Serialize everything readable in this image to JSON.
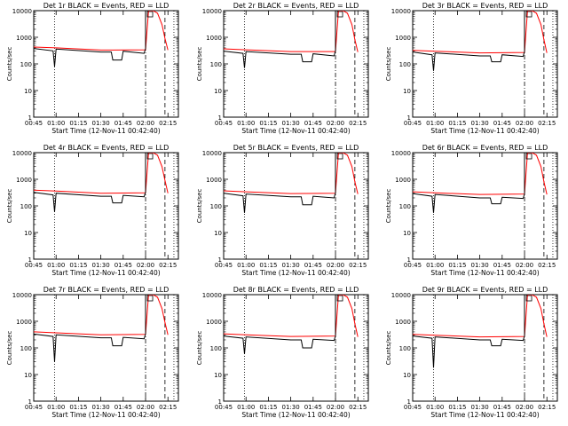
{
  "figure": {
    "ylabel": "Counts/sec",
    "xlabel": "Start Time (12-Nov-11 00:42:40)"
  },
  "chart_data": [
    {
      "type": "line",
      "title": "Det 1r BLACK = Events, RED = LLD",
      "xlabel": "Start Time (12-Nov-11 00:42:40)",
      "ylabel": "Counts/sec",
      "y_scale": "log",
      "ylim": [
        1,
        10000
      ],
      "xlim": [
        "00:45",
        "02:22"
      ],
      "x_ticks": [
        "00:45",
        "01:00",
        "01:15",
        "01:30",
        "01:45",
        "02:00",
        "02:15"
      ],
      "y_ticks": [
        "1",
        "10",
        "100",
        "1000",
        "10000"
      ],
      "series": [
        {
          "color": "#000000",
          "x": [
            "00:45",
            "00:58",
            "00:59",
            "01:00",
            "01:30",
            "01:37",
            "01:38",
            "01:44",
            "01:45",
            "01:59",
            "02:00",
            "02:00"
          ],
          "y": [
            380,
            310,
            80,
            360,
            280,
            280,
            140,
            140,
            300,
            250,
            380,
            10000
          ]
        },
        {
          "color": "#ff0000",
          "x": [
            "00:45",
            "01:00",
            "01:30",
            "02:00",
            "02:02",
            "02:05",
            "02:08",
            "02:11",
            "02:13",
            "02:15"
          ],
          "y": [
            430,
            400,
            330,
            340,
            10000,
            10000,
            8000,
            3000,
            900,
            330
          ]
        }
      ],
      "dotted_x": [
        "00:59",
        "02:19"
      ],
      "dashdot_x": [
        "02:00"
      ],
      "dashed_x": [
        "02:13"
      ]
    },
    {
      "type": "line",
      "title": "Det 2r BLACK = Events, RED = LLD",
      "xlabel": "Start Time (12-Nov-11 00:42:40)",
      "ylabel": "Counts/sec",
      "y_scale": "log",
      "ylim": [
        1,
        10000
      ],
      "xlim": [
        "00:45",
        "02:22"
      ],
      "x_ticks": [
        "00:45",
        "01:00",
        "01:15",
        "01:30",
        "01:45",
        "02:00",
        "02:15"
      ],
      "y_ticks": [
        "1",
        "10",
        "100",
        "1000",
        "10000"
      ],
      "series": [
        {
          "color": "#000000",
          "x": [
            "00:45",
            "00:58",
            "00:59",
            "01:00",
            "01:30",
            "01:37",
            "01:38",
            "01:44",
            "01:45",
            "01:59",
            "02:00",
            "02:00"
          ],
          "y": [
            300,
            250,
            70,
            290,
            230,
            230,
            120,
            120,
            240,
            200,
            310,
            10000
          ]
        },
        {
          "color": "#ff0000",
          "x": [
            "00:45",
            "01:00",
            "01:30",
            "02:00",
            "02:02",
            "02:05",
            "02:08",
            "02:11",
            "02:13",
            "02:15"
          ],
          "y": [
            370,
            340,
            290,
            290,
            10000,
            10000,
            8000,
            3000,
            800,
            280
          ]
        }
      ],
      "dotted_x": [
        "00:59",
        "02:19"
      ],
      "dashdot_x": [
        "02:00"
      ],
      "dashed_x": [
        "02:13"
      ]
    },
    {
      "type": "line",
      "title": "Det 3r BLACK = Events, RED = LLD",
      "xlabel": "Start Time (12-Nov-11 00:42:40)",
      "ylabel": "Counts/sec",
      "y_scale": "log",
      "ylim": [
        1,
        10000
      ],
      "xlim": [
        "00:45",
        "02:22"
      ],
      "x_ticks": [
        "00:45",
        "01:00",
        "01:15",
        "01:30",
        "01:45",
        "02:00",
        "02:15"
      ],
      "y_ticks": [
        "1",
        "10",
        "100",
        "1000",
        "10000"
      ],
      "series": [
        {
          "color": "#000000",
          "x": [
            "00:45",
            "00:58",
            "00:59",
            "01:00",
            "01:30",
            "01:37",
            "01:38",
            "01:44",
            "01:45",
            "01:59",
            "02:00",
            "02:00"
          ],
          "y": [
            280,
            220,
            55,
            260,
            200,
            200,
            120,
            120,
            220,
            190,
            290,
            10000
          ]
        },
        {
          "color": "#ff0000",
          "x": [
            "00:45",
            "01:00",
            "01:30",
            "02:00",
            "02:02",
            "02:05",
            "02:08",
            "02:11",
            "02:13",
            "02:15"
          ],
          "y": [
            320,
            300,
            260,
            270,
            10000,
            10000,
            8000,
            3000,
            800,
            260
          ]
        }
      ],
      "dotted_x": [
        "00:59",
        "02:19"
      ],
      "dashdot_x": [
        "02:00"
      ],
      "dashed_x": [
        "02:13"
      ]
    },
    {
      "type": "line",
      "title": "Det 4r BLACK = Events, RED = LLD",
      "xlabel": "Start Time (12-Nov-11 00:42:40)",
      "ylabel": "Counts/sec",
      "y_scale": "log",
      "ylim": [
        1,
        10000
      ],
      "xlim": [
        "00:45",
        "02:22"
      ],
      "x_ticks": [
        "00:45",
        "01:00",
        "01:15",
        "01:30",
        "01:45",
        "02:00",
        "02:15"
      ],
      "y_ticks": [
        "1",
        "10",
        "100",
        "1000",
        "10000"
      ],
      "series": [
        {
          "color": "#000000",
          "x": [
            "00:45",
            "00:58",
            "00:59",
            "01:00",
            "01:30",
            "01:37",
            "01:38",
            "01:44",
            "01:45",
            "01:59",
            "02:00",
            "02:00"
          ],
          "y": [
            320,
            260,
            60,
            300,
            230,
            230,
            130,
            130,
            250,
            220,
            330,
            10000
          ]
        },
        {
          "color": "#ff0000",
          "x": [
            "00:45",
            "01:00",
            "01:30",
            "02:00",
            "02:02",
            "02:05",
            "02:08",
            "02:11",
            "02:13",
            "02:15"
          ],
          "y": [
            390,
            360,
            300,
            310,
            10000,
            10000,
            8000,
            3000,
            900,
            300
          ]
        }
      ],
      "dotted_x": [
        "00:59",
        "02:19"
      ],
      "dashdot_x": [
        "02:00"
      ],
      "dashed_x": [
        "02:13"
      ]
    },
    {
      "type": "line",
      "title": "Det 5r BLACK = Events, RED = LLD",
      "xlabel": "Start Time (12-Nov-11 00:42:40)",
      "ylabel": "Counts/sec",
      "y_scale": "log",
      "ylim": [
        1,
        10000
      ],
      "xlim": [
        "00:45",
        "02:22"
      ],
      "x_ticks": [
        "00:45",
        "01:00",
        "01:15",
        "01:30",
        "01:45",
        "02:00",
        "02:15"
      ],
      "y_ticks": [
        "1",
        "10",
        "100",
        "1000",
        "10000"
      ],
      "series": [
        {
          "color": "#000000",
          "x": [
            "00:45",
            "00:58",
            "00:59",
            "01:00",
            "01:30",
            "01:37",
            "01:38",
            "01:44",
            "01:45",
            "01:59",
            "02:00",
            "02:00"
          ],
          "y": [
            300,
            240,
            55,
            280,
            220,
            220,
            110,
            110,
            230,
            200,
            310,
            10000
          ]
        },
        {
          "color": "#ff0000",
          "x": [
            "00:45",
            "01:00",
            "01:30",
            "02:00",
            "02:02",
            "02:05",
            "02:08",
            "02:11",
            "02:13",
            "02:15"
          ],
          "y": [
            370,
            340,
            290,
            300,
            10000,
            10000,
            8000,
            3000,
            800,
            280
          ]
        }
      ],
      "dotted_x": [
        "00:59",
        "02:19"
      ],
      "dashdot_x": [
        "02:00"
      ],
      "dashed_x": [
        "02:13"
      ]
    },
    {
      "type": "line",
      "title": "Det 6r BLACK = Events, RED = LLD",
      "xlabel": "Start Time (12-Nov-11 00:42:40)",
      "ylabel": "Counts/sec",
      "y_scale": "log",
      "ylim": [
        1,
        10000
      ],
      "xlim": [
        "00:45",
        "02:22"
      ],
      "x_ticks": [
        "00:45",
        "01:00",
        "01:15",
        "01:30",
        "01:45",
        "02:00",
        "02:15"
      ],
      "y_ticks": [
        "1",
        "10",
        "100",
        "1000",
        "10000"
      ],
      "series": [
        {
          "color": "#000000",
          "x": [
            "00:45",
            "00:58",
            "00:59",
            "01:00",
            "01:30",
            "01:37",
            "01:38",
            "01:44",
            "01:45",
            "01:59",
            "02:00",
            "02:00"
          ],
          "y": [
            290,
            230,
            55,
            270,
            200,
            200,
            120,
            120,
            210,
            190,
            280,
            10000
          ]
        },
        {
          "color": "#ff0000",
          "x": [
            "00:45",
            "01:00",
            "01:30",
            "02:00",
            "02:02",
            "02:05",
            "02:08",
            "02:11",
            "02:13",
            "02:15"
          ],
          "y": [
            340,
            310,
            270,
            280,
            10000,
            10000,
            8000,
            3000,
            800,
            270
          ]
        }
      ],
      "dotted_x": [
        "00:59",
        "02:19"
      ],
      "dashdot_x": [
        "02:00"
      ],
      "dashed_x": [
        "02:13"
      ]
    },
    {
      "type": "line",
      "title": "Det 7r BLACK = Events, RED = LLD",
      "xlabel": "Start Time (12-Nov-11 00:42:40)",
      "ylabel": "Counts/sec",
      "y_scale": "log",
      "ylim": [
        1,
        10000
      ],
      "xlim": [
        "00:45",
        "02:22"
      ],
      "x_ticks": [
        "00:45",
        "01:00",
        "01:15",
        "01:30",
        "01:45",
        "02:00",
        "02:15"
      ],
      "y_ticks": [
        "1",
        "10",
        "100",
        "1000",
        "10000"
      ],
      "series": [
        {
          "color": "#000000",
          "x": [
            "00:45",
            "00:58",
            "00:59",
            "01:00",
            "01:30",
            "01:37",
            "01:38",
            "01:44",
            "01:45",
            "01:59",
            "02:00",
            "02:00"
          ],
          "y": [
            330,
            270,
            30,
            310,
            240,
            240,
            120,
            120,
            250,
            220,
            340,
            10000
          ]
        },
        {
          "color": "#ff0000",
          "x": [
            "00:45",
            "01:00",
            "01:30",
            "02:00",
            "02:02",
            "02:05",
            "02:08",
            "02:11",
            "02:13",
            "02:15"
          ],
          "y": [
            400,
            370,
            310,
            320,
            10000,
            10000,
            8000,
            3000,
            900,
            310
          ]
        }
      ],
      "dotted_x": [
        "00:59",
        "02:19"
      ],
      "dashdot_x": [
        "02:00"
      ],
      "dashed_x": [
        "02:13"
      ]
    },
    {
      "type": "line",
      "title": "Det 8r BLACK = Events, RED = LLD",
      "xlabel": "Start Time (12-Nov-11 00:42:40)",
      "ylabel": "Counts/sec",
      "y_scale": "log",
      "ylim": [
        1,
        10000
      ],
      "xlim": [
        "00:45",
        "02:22"
      ],
      "x_ticks": [
        "00:45",
        "01:00",
        "01:15",
        "01:30",
        "01:45",
        "02:00",
        "02:15"
      ],
      "y_ticks": [
        "1",
        "10",
        "100",
        "1000",
        "10000"
      ],
      "series": [
        {
          "color": "#000000",
          "x": [
            "00:45",
            "00:58",
            "00:59",
            "01:00",
            "01:30",
            "01:37",
            "01:38",
            "01:44",
            "01:45",
            "01:59",
            "02:00",
            "02:00"
          ],
          "y": [
            280,
            230,
            60,
            260,
            200,
            200,
            100,
            100,
            210,
            190,
            280,
            10000
          ]
        },
        {
          "color": "#ff0000",
          "x": [
            "00:45",
            "01:00",
            "01:30",
            "02:00",
            "02:02",
            "02:05",
            "02:08",
            "02:11",
            "02:13",
            "02:15"
          ],
          "y": [
            340,
            310,
            270,
            280,
            10000,
            10000,
            8000,
            3000,
            800,
            260
          ]
        }
      ],
      "dotted_x": [
        "00:59",
        "02:19"
      ],
      "dashdot_x": [
        "02:00"
      ],
      "dashed_x": [
        "02:13"
      ]
    },
    {
      "type": "line",
      "title": "Det 9r BLACK = Events, RED = LLD",
      "xlabel": "Start Time (12-Nov-11 00:42:40)",
      "ylabel": "Counts/sec",
      "y_scale": "log",
      "ylim": [
        1,
        10000
      ],
      "xlim": [
        "00:45",
        "02:22"
      ],
      "x_ticks": [
        "00:45",
        "01:00",
        "01:15",
        "01:30",
        "01:45",
        "02:00",
        "02:15"
      ],
      "y_ticks": [
        "1",
        "10",
        "100",
        "1000",
        "10000"
      ],
      "series": [
        {
          "color": "#000000",
          "x": [
            "00:45",
            "00:58",
            "00:59",
            "01:00",
            "01:30",
            "01:37",
            "01:38",
            "01:44",
            "01:45",
            "01:59",
            "02:00",
            "02:00"
          ],
          "y": [
            280,
            230,
            18,
            260,
            200,
            200,
            120,
            120,
            210,
            190,
            280,
            10000
          ]
        },
        {
          "color": "#ff0000",
          "x": [
            "00:45",
            "01:00",
            "01:30",
            "02:00",
            "02:02",
            "02:05",
            "02:08",
            "02:11",
            "02:13",
            "02:15"
          ],
          "y": [
            320,
            300,
            260,
            270,
            10000,
            10000,
            8000,
            3000,
            800,
            260
          ]
        }
      ],
      "dotted_x": [
        "00:59",
        "02:19"
      ],
      "dashdot_x": [
        "02:00"
      ],
      "dashed_x": [
        "02:13"
      ]
    }
  ]
}
